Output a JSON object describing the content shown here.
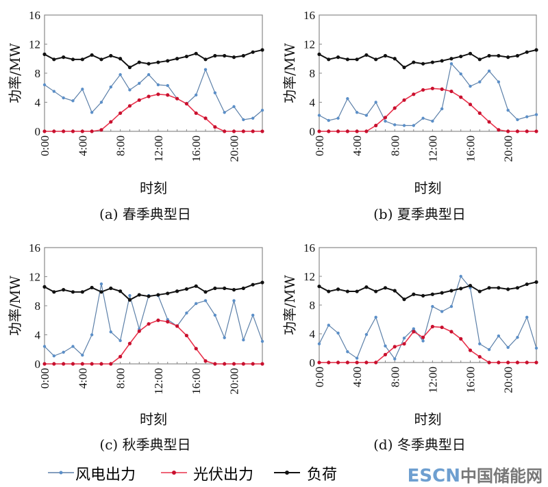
{
  "chart_data": [
    {
      "type": "line",
      "caption": "(a) 春季典型日",
      "xlabel": "时刻",
      "ylabel": "功率/MW",
      "ylim": [
        0,
        16
      ],
      "yticks": [
        "0",
        "4",
        "8",
        "12",
        "16"
      ],
      "xticks": [
        "0:00",
        "4:00",
        "8:00",
        "12:00",
        "16:00",
        "20:00"
      ],
      "x_hours": [
        0,
        1,
        2,
        3,
        4,
        5,
        6,
        7,
        8,
        9,
        10,
        11,
        12,
        13,
        14,
        15,
        16,
        17,
        18,
        19,
        20,
        21,
        22,
        23
      ],
      "series": [
        {
          "name": "风电出力",
          "values": [
            6.4,
            5.5,
            4.6,
            4.2,
            5.8,
            2.6,
            4.0,
            6.1,
            7.8,
            5.7,
            6.6,
            7.8,
            6.4,
            6.3,
            4.5,
            3.8,
            5.0,
            8.5,
            5.3,
            2.6,
            3.4,
            1.6,
            1.8,
            2.9
          ]
        },
        {
          "name": "光伏出力",
          "values": [
            0,
            0,
            0,
            0,
            0,
            0,
            0.2,
            1.3,
            2.5,
            3.5,
            4.3,
            4.8,
            5.1,
            5.0,
            4.5,
            3.8,
            2.5,
            1.8,
            0.6,
            0,
            0,
            0,
            0,
            0
          ]
        },
        {
          "name": "负荷",
          "values": [
            10.6,
            9.9,
            10.2,
            9.9,
            9.9,
            10.5,
            9.9,
            10.4,
            10.0,
            8.8,
            9.5,
            9.3,
            9.5,
            9.7,
            10.0,
            10.3,
            10.7,
            9.9,
            10.4,
            10.4,
            10.2,
            10.4,
            10.9,
            11.2
          ]
        }
      ]
    },
    {
      "type": "line",
      "caption": "(b) 夏季典型日",
      "xlabel": "时刻",
      "ylabel": "功率/MW",
      "ylim": [
        0,
        16
      ],
      "yticks": [
        "0",
        "4",
        "8",
        "12",
        "16"
      ],
      "xticks": [
        "0:00",
        "4:00",
        "8:00",
        "12:00",
        "16:00",
        "20:00"
      ],
      "x_hours": [
        0,
        1,
        2,
        3,
        4,
        5,
        6,
        7,
        8,
        9,
        10,
        11,
        12,
        13,
        14,
        15,
        16,
        17,
        18,
        19,
        20,
        21,
        22,
        23
      ],
      "series": [
        {
          "name": "风电出力",
          "values": [
            2.2,
            1.5,
            1.8,
            4.5,
            2.6,
            2.2,
            4.0,
            1.4,
            0.9,
            0.8,
            0.8,
            1.8,
            1.4,
            3.1,
            9.3,
            7.9,
            6.2,
            6.8,
            8.3,
            6.8,
            2.9,
            1.6,
            2.0,
            2.3
          ]
        },
        {
          "name": "光伏出力",
          "values": [
            0,
            0,
            0,
            0,
            0,
            0,
            0.8,
            1.9,
            3.2,
            4.3,
            5.1,
            5.7,
            5.9,
            5.8,
            5.5,
            4.7,
            3.7,
            2.5,
            1.3,
            0.2,
            0,
            0,
            0,
            0
          ]
        },
        {
          "name": "负荷",
          "values": [
            10.6,
            9.9,
            10.2,
            9.9,
            9.9,
            10.5,
            9.9,
            10.4,
            10.0,
            8.8,
            9.5,
            9.3,
            9.5,
            9.7,
            10.0,
            10.3,
            10.7,
            9.9,
            10.4,
            10.4,
            10.2,
            10.4,
            10.9,
            11.2
          ]
        }
      ]
    },
    {
      "type": "line",
      "caption": "(c) 秋季典型日",
      "xlabel": "时刻",
      "ylabel": "功率/MW",
      "ylim": [
        0,
        16
      ],
      "yticks": [
        "0",
        "4",
        "8",
        "12",
        "16"
      ],
      "xticks": [
        "0:00",
        "4:00",
        "8:00",
        "12:00",
        "16:00",
        "20:00"
      ],
      "x_hours": [
        0,
        1,
        2,
        3,
        4,
        5,
        6,
        7,
        8,
        9,
        10,
        11,
        12,
        13,
        14,
        15,
        16,
        17,
        18,
        19,
        20,
        21,
        22,
        23
      ],
      "series": [
        {
          "name": "风电出力",
          "values": [
            2.4,
            1.1,
            1.6,
            2.4,
            1.2,
            4.0,
            11.0,
            4.4,
            3.2,
            9.4,
            4.8,
            9.4,
            9.4,
            6.1,
            5.2,
            7.0,
            8.3,
            8.7,
            6.7,
            3.6,
            8.7,
            3.3,
            6.7,
            3.1
          ]
        },
        {
          "name": "光伏出力",
          "values": [
            0,
            0,
            0,
            0,
            0,
            0,
            0,
            0,
            1.0,
            2.8,
            4.5,
            5.5,
            6.0,
            5.8,
            5.2,
            3.9,
            2.1,
            0.4,
            0,
            0,
            0,
            0,
            0,
            0
          ]
        },
        {
          "name": "负荷",
          "values": [
            10.6,
            9.9,
            10.2,
            9.9,
            9.9,
            10.5,
            9.9,
            10.4,
            10.0,
            8.8,
            9.5,
            9.3,
            9.5,
            9.7,
            10.0,
            10.3,
            10.7,
            9.9,
            10.4,
            10.4,
            10.2,
            10.4,
            10.9,
            11.2
          ]
        }
      ]
    },
    {
      "type": "line",
      "caption": "(d) 冬季典型日",
      "xlabel": "时刻",
      "ylabel": "功率/MW",
      "ylim": [
        0,
        16
      ],
      "yticks": [
        "0",
        "4",
        "8",
        "12",
        "16"
      ],
      "xticks": [
        "0:00",
        "4:00",
        "8:00",
        "12:00",
        "16:00",
        "20:00"
      ],
      "x_hours": [
        0,
        1,
        2,
        3,
        4,
        5,
        6,
        7,
        8,
        9,
        10,
        11,
        12,
        13,
        14,
        15,
        16,
        17,
        18,
        19,
        20,
        21,
        22,
        23
      ],
      "series": [
        {
          "name": "风电出力",
          "values": [
            2.6,
            5.2,
            4.1,
            1.5,
            0.6,
            3.9,
            6.3,
            2.3,
            0.5,
            3.4,
            4.7,
            3.0,
            7.8,
            7.1,
            7.8,
            12.0,
            10.4,
            2.6,
            1.8,
            3.7,
            2.1,
            3.5,
            6.3,
            2.0
          ]
        },
        {
          "name": "光伏出力",
          "values": [
            0,
            0,
            0,
            0,
            0,
            0,
            0,
            1.1,
            2.2,
            2.6,
            4.3,
            3.5,
            5.0,
            4.9,
            4.3,
            3.3,
            1.7,
            0.8,
            0,
            0,
            0,
            0,
            0,
            0
          ]
        },
        {
          "name": "负荷",
          "values": [
            10.6,
            9.9,
            10.2,
            9.9,
            9.9,
            10.5,
            9.9,
            10.4,
            10.0,
            8.8,
            9.5,
            9.3,
            9.5,
            9.7,
            10.0,
            10.3,
            10.7,
            9.9,
            10.4,
            10.4,
            10.2,
            10.4,
            10.9,
            11.2
          ]
        }
      ]
    }
  ],
  "legend": {
    "wind": "风电出力",
    "pv": "光伏出力",
    "load": "负荷"
  },
  "colors": {
    "wind": "#5b7fa8",
    "wind_marker": "#5b8fc8",
    "pv": "#e8304a",
    "pv_marker": "#c8102e",
    "load": "#111111"
  },
  "watermark": {
    "text_latin": "ESCN",
    "text_cn": "中国储能网"
  }
}
